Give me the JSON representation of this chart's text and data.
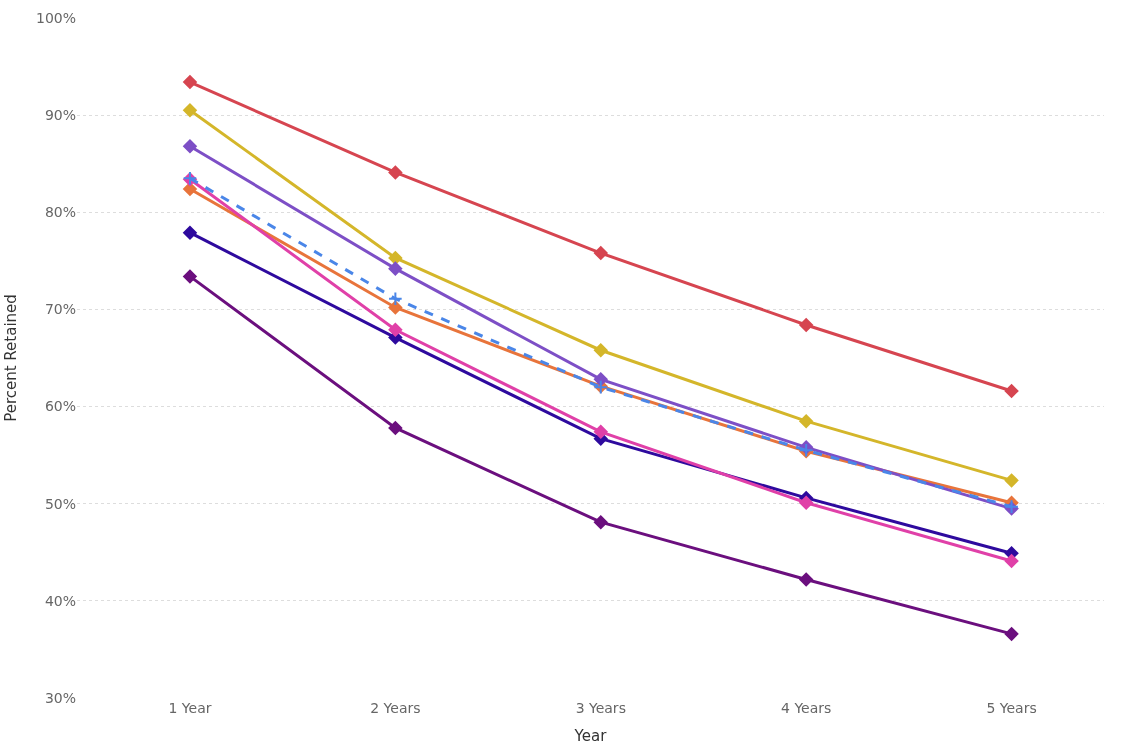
{
  "chart_data": {
    "type": "line",
    "xlabel": "Year",
    "ylabel": "Percent Retained",
    "categories": [
      "1 Year",
      "2 Years",
      "3 Years",
      "4 Years",
      "5 Years"
    ],
    "ylim": [
      30,
      100
    ],
    "yticks": [
      {
        "value": 30,
        "label": "30%"
      },
      {
        "value": 40,
        "label": "40%"
      },
      {
        "value": 50,
        "label": "50%"
      },
      {
        "value": 60,
        "label": "60%"
      },
      {
        "value": 70,
        "label": "70%"
      },
      {
        "value": 80,
        "label": "80%"
      },
      {
        "value": 90,
        "label": "90%"
      },
      {
        "value": 100,
        "label": "100%"
      }
    ],
    "grid": "y",
    "marker": "diamond",
    "line_style": "solid",
    "series": [
      {
        "color": "#d64550",
        "values": [
          93.4,
          84.1,
          75.8,
          68.4,
          61.6
        ]
      },
      {
        "color": "#d4b62a",
        "values": [
          90.5,
          75.3,
          65.8,
          58.5,
          52.4
        ]
      },
      {
        "color": "#e8743b",
        "values": [
          82.4,
          70.2,
          62.1,
          55.4,
          50.1
        ]
      },
      {
        "color": "#7d4fc6",
        "values": [
          86.8,
          74.2,
          62.8,
          55.8,
          49.5
        ]
      },
      {
        "color": "#2e0a9e",
        "values": [
          77.9,
          67.1,
          56.7,
          50.6,
          44.9
        ]
      },
      {
        "color": "#e040a8",
        "values": [
          83.4,
          67.9,
          57.4,
          50.1,
          44.1
        ]
      },
      {
        "color": "#6b0f7e",
        "values": [
          73.4,
          57.8,
          48.1,
          42.2,
          36.6
        ]
      },
      {
        "color": "#4a86e8",
        "values": [
          83.5,
          71.1,
          62.0,
          55.5,
          49.7
        ],
        "marker": "cross",
        "line_style": "dashed"
      }
    ]
  }
}
